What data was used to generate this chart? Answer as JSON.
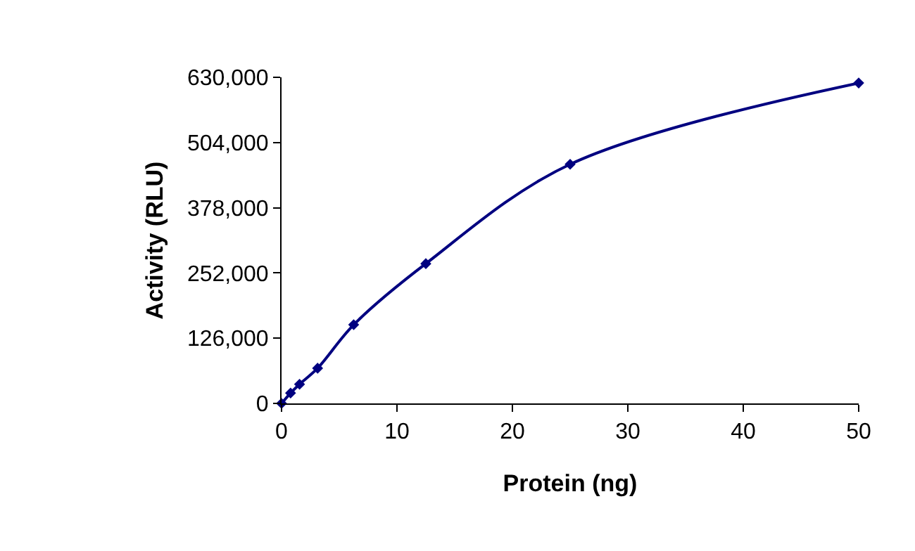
{
  "chart_data": {
    "type": "line",
    "xlabel": "Protein (ng)",
    "ylabel": "Activity (RLU)",
    "x": [
      0,
      0.78,
      1.56,
      3.125,
      6.25,
      12.5,
      25,
      50
    ],
    "series": [
      {
        "color": "#000080",
        "values": [
          0,
          20000,
          37000,
          68000,
          152000,
          270000,
          462000,
          619000
        ]
      }
    ],
    "xlim": [
      0,
      50
    ],
    "xticks": [
      0,
      10,
      20,
      30,
      40,
      50
    ],
    "ylim": [
      0,
      630000
    ],
    "yticks": [
      {
        "value": 0,
        "label": "0"
      },
      {
        "value": 126000,
        "label": "126,000"
      },
      {
        "value": 252000,
        "label": "252,000"
      },
      {
        "value": 378000,
        "label": "378,000"
      },
      {
        "value": 504000,
        "label": "504,000"
      },
      {
        "value": 630000,
        "label": "630,000"
      }
    ],
    "grid": false,
    "legend": false,
    "marker": "diamond",
    "line_style": "solid"
  }
}
